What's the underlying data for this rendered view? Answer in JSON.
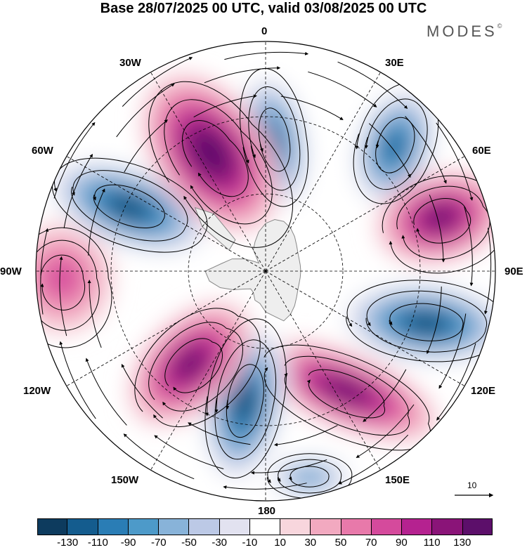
{
  "header": {
    "title": "Base 28/07/2025 00 UTC, valid 03/08/2025 00 UTC",
    "brand": "MODES",
    "brand_mark": "©"
  },
  "map": {
    "projection": "south-polar-stereographic",
    "longitude_labels": [
      "0",
      "30E",
      "60E",
      "90E",
      "120E",
      "150E",
      "180",
      "150W",
      "120W",
      "90W",
      "60W",
      "30W"
    ],
    "land_color": "#eeeeee",
    "coast_color": "#888888"
  },
  "anomaly_centers": [
    {
      "lon": "~8E",
      "sign": "negative",
      "value": -110
    },
    {
      "lon": "~47E",
      "sign": "negative",
      "value": -110
    },
    {
      "lon": "~70E",
      "sign": "positive",
      "value": 110
    },
    {
      "lon": "~115E",
      "sign": "negative",
      "value": -130
    },
    {
      "lon": "~145E",
      "sign": "positive",
      "value": 110
    },
    {
      "lon": "~170E",
      "sign": "negative",
      "value": -70
    },
    {
      "lon": "~170W",
      "sign": "negative",
      "value": -130
    },
    {
      "lon": "~145W",
      "sign": "positive",
      "value": 110
    },
    {
      "lon": "~95W",
      "sign": "positive",
      "value": 50
    },
    {
      "lon": "~60W",
      "sign": "negative",
      "value": -130
    },
    {
      "lon": "~30W",
      "sign": "positive",
      "value": 130
    }
  ],
  "reference_vector": {
    "label": "10"
  },
  "colorbar": {
    "colors": [
      "#0d3b5e",
      "#145c8e",
      "#2a7db5",
      "#4d9ac9",
      "#88b3d9",
      "#bcc9e6",
      "#e2e2f0",
      "#ffffff",
      "#f8d6dd",
      "#f2a9c0",
      "#e879aa",
      "#d54a9c",
      "#b52290",
      "#8a1478",
      "#5c0f6a"
    ],
    "tick_labels": [
      "-130",
      "-110",
      "-90",
      "-70",
      "-50",
      "-30",
      "-10",
      "10",
      "30",
      "50",
      "70",
      "90",
      "110",
      "130"
    ]
  }
}
